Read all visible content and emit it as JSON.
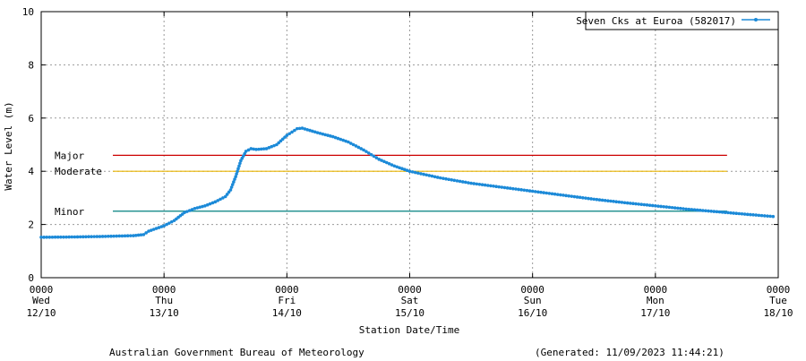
{
  "chart_data": {
    "type": "line",
    "xlabel": "Station Date/Time",
    "ylabel": "Water Level (m)",
    "ylim": [
      0,
      10
    ],
    "xlim": [
      "2023-10-12T00:00",
      "2023-10-18T00:00"
    ],
    "grid": true,
    "legend_position": "top-right",
    "y_ticks": [
      "0",
      "2",
      "4",
      "6",
      "8",
      "10"
    ],
    "x_ticks": [
      {
        "time": "0000",
        "day": "Wed",
        "date": "12/10"
      },
      {
        "time": "0000",
        "day": "Thu",
        "date": "13/10"
      },
      {
        "time": "0000",
        "day": "Fri",
        "date": "14/10"
      },
      {
        "time": "0000",
        "day": "Sat",
        "date": "15/10"
      },
      {
        "time": "0000",
        "day": "Sun",
        "date": "16/10"
      },
      {
        "time": "0000",
        "day": "Mon",
        "date": "17/10"
      },
      {
        "time": "0000",
        "day": "Tue",
        "date": "18/10"
      }
    ],
    "thresholds": [
      {
        "label": "Major",
        "value": 4.6,
        "color": "#cc0000",
        "start": "2023-10-12T14:00",
        "end": "2023-10-17T14:00"
      },
      {
        "label": "Moderate",
        "value": 4.0,
        "color": "#e8b400",
        "start": "2023-10-12T14:00",
        "end": "2023-10-17T14:00"
      },
      {
        "label": "Minor",
        "value": 2.5,
        "color": "#00807f",
        "start": "2023-10-12T14:00",
        "end": "2023-10-17T14:00"
      }
    ],
    "series": [
      {
        "name": "Seven Cks at Euroa (582017)",
        "color": "#1c8ad8",
        "points": [
          [
            "2023-10-12T00:00",
            1.52
          ],
          [
            "2023-10-12T06:00",
            1.53
          ],
          [
            "2023-10-12T12:00",
            1.55
          ],
          [
            "2023-10-12T18:00",
            1.58
          ],
          [
            "2023-10-12T20:00",
            1.62
          ],
          [
            "2023-10-12T21:00",
            1.75
          ],
          [
            "2023-10-13T00:00",
            1.95
          ],
          [
            "2023-10-13T02:00",
            2.15
          ],
          [
            "2023-10-13T04:00",
            2.45
          ],
          [
            "2023-10-13T06:00",
            2.6
          ],
          [
            "2023-10-13T08:00",
            2.7
          ],
          [
            "2023-10-13T10:00",
            2.85
          ],
          [
            "2023-10-13T12:00",
            3.05
          ],
          [
            "2023-10-13T13:00",
            3.3
          ],
          [
            "2023-10-13T14:00",
            3.8
          ],
          [
            "2023-10-13T15:00",
            4.4
          ],
          [
            "2023-10-13T16:00",
            4.75
          ],
          [
            "2023-10-13T17:00",
            4.85
          ],
          [
            "2023-10-13T18:00",
            4.82
          ],
          [
            "2023-10-13T20:00",
            4.85
          ],
          [
            "2023-10-13T22:00",
            5.0
          ],
          [
            "2023-10-14T00:00",
            5.35
          ],
          [
            "2023-10-14T02:00",
            5.6
          ],
          [
            "2023-10-14T03:00",
            5.62
          ],
          [
            "2023-10-14T06:00",
            5.45
          ],
          [
            "2023-10-14T09:00",
            5.3
          ],
          [
            "2023-10-14T12:00",
            5.1
          ],
          [
            "2023-10-14T15:00",
            4.8
          ],
          [
            "2023-10-14T18:00",
            4.45
          ],
          [
            "2023-10-14T21:00",
            4.2
          ],
          [
            "2023-10-15T00:00",
            4.0
          ],
          [
            "2023-10-15T06:00",
            3.75
          ],
          [
            "2023-10-15T12:00",
            3.55
          ],
          [
            "2023-10-15T18:00",
            3.4
          ],
          [
            "2023-10-16T00:00",
            3.25
          ],
          [
            "2023-10-16T06:00",
            3.1
          ],
          [
            "2023-10-16T12:00",
            2.95
          ],
          [
            "2023-10-16T18:00",
            2.82
          ],
          [
            "2023-10-17T00:00",
            2.7
          ],
          [
            "2023-10-17T06:00",
            2.58
          ],
          [
            "2023-10-17T12:00",
            2.48
          ],
          [
            "2023-10-17T18:00",
            2.38
          ],
          [
            "2023-10-17T23:00",
            2.3
          ]
        ]
      }
    ]
  },
  "footer": {
    "source": "Australian Government Bureau of Meteorology",
    "generated": "(Generated: 11/09/2023 11:44:21)"
  }
}
